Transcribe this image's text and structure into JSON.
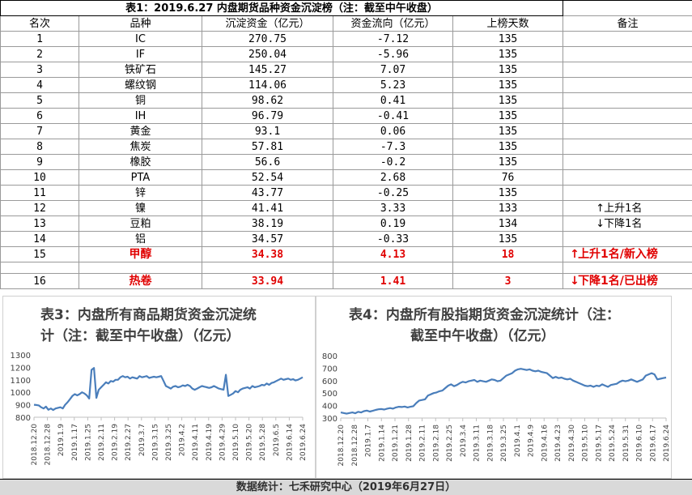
{
  "table": {
    "title": "表1：2019.6.27 内盘期货品种资金沉淀榜（注：截至中午收盘）",
    "headers": [
      "名次",
      "品种",
      "沉淀资金（亿元）",
      "资金流向（亿元）",
      "上榜天数",
      "备注"
    ],
    "rows": [
      {
        "rank": "1",
        "name": "IC",
        "amount": "270.75",
        "flow": "-7.12",
        "days": "135",
        "note": ""
      },
      {
        "rank": "2",
        "name": "IF",
        "amount": "250.04",
        "flow": "-5.96",
        "days": "135",
        "note": ""
      },
      {
        "rank": "3",
        "name": "铁矿石",
        "amount": "145.27",
        "flow": "7.07",
        "days": "135",
        "note": ""
      },
      {
        "rank": "4",
        "name": "螺纹钢",
        "amount": "114.06",
        "flow": "5.23",
        "days": "135",
        "note": ""
      },
      {
        "rank": "5",
        "name": "铜",
        "amount": "98.62",
        "flow": "0.41",
        "days": "135",
        "note": ""
      },
      {
        "rank": "6",
        "name": "IH",
        "amount": "96.79",
        "flow": "-0.41",
        "days": "135",
        "note": ""
      },
      {
        "rank": "7",
        "name": "黄金",
        "amount": "93.1",
        "flow": "0.06",
        "days": "135",
        "note": ""
      },
      {
        "rank": "8",
        "name": "焦炭",
        "amount": "57.81",
        "flow": "-7.3",
        "days": "135",
        "note": ""
      },
      {
        "rank": "9",
        "name": "橡胶",
        "amount": "56.6",
        "flow": "-0.2",
        "days": "135",
        "note": ""
      },
      {
        "rank": "10",
        "name": "PTA",
        "amount": "52.54",
        "flow": "2.68",
        "days": "76",
        "note": ""
      },
      {
        "rank": "11",
        "name": "锌",
        "amount": "43.77",
        "flow": "-0.25",
        "days": "135",
        "note": ""
      },
      {
        "rank": "12",
        "name": "镍",
        "amount": "41.41",
        "flow": "3.33",
        "days": "133",
        "note": "上升1名",
        "arrow": "↑"
      },
      {
        "rank": "13",
        "name": "豆粕",
        "amount": "38.19",
        "flow": "0.19",
        "days": "134",
        "note": "下降1名",
        "arrow": "↓"
      },
      {
        "rank": "14",
        "name": "铝",
        "amount": "34.57",
        "flow": "-0.33",
        "days": "135",
        "note": ""
      }
    ],
    "highlight_rows": [
      {
        "rank": "15",
        "name": "甲醇",
        "amount": "34.38",
        "flow": "4.13",
        "days": "18",
        "note": "上升1名/新入榜",
        "arrow": "↑"
      },
      {
        "rank": "16",
        "name": "热卷",
        "amount": "33.94",
        "flow": "1.41",
        "days": "3",
        "note": "下降1名/已出榜",
        "arrow": "↓"
      }
    ]
  },
  "chart_data": [
    {
      "type": "line",
      "title": "表3：内盘所有商品期货资金沉淀统计（注：截至中午收盘）（亿元）",
      "title_lines": [
        "表3：内盘所有商品期货资金沉淀统",
        "计（注：截至中午收盘）（亿元）"
      ],
      "ylim": [
        800,
        1300
      ],
      "yticks": [
        800,
        900,
        1000,
        1100,
        1200,
        1300
      ],
      "xticks": [
        "2018.12.20",
        "2018.12.28",
        "2019.1.9",
        "2019.1.17",
        "2019.1.25",
        "2019.2.11",
        "2019.2.19",
        "2019.2.27",
        "2019.3.7",
        "2019.3.15",
        "2019.3.25",
        "2019.4.2",
        "2019.4.11",
        "2019.4.19",
        "2019.4.29",
        "2019.5.10",
        "2019.5.20",
        "2019.5.28",
        "2019.6.5",
        "2019.6.14",
        "2019.6.24"
      ],
      "color": "#4a7ebb",
      "values": [
        900,
        898,
        895,
        880,
        870,
        885,
        860,
        870,
        858,
        870,
        875,
        880,
        870,
        900,
        920,
        945,
        970,
        985,
        975,
        985,
        1000,
        990,
        975,
        950,
        1180,
        1195,
        955,
        1020,
        1040,
        1060,
        1080,
        1070,
        1090,
        1085,
        1100,
        1100,
        1120,
        1130,
        1120,
        1125,
        1110,
        1120,
        1115,
        1110,
        1130,
        1120,
        1125,
        1130,
        1115,
        1120,
        1125,
        1120,
        1125,
        1130,
        1090,
        1050,
        1040,
        1030,
        1045,
        1050,
        1040,
        1045,
        1055,
        1050,
        1060,
        1050,
        1030,
        1020,
        1030,
        1040,
        1050,
        1045,
        1040,
        1035,
        1040,
        1050,
        1040,
        1030,
        1025,
        1020,
        1140,
        970,
        980,
        990,
        1010,
        1000,
        1020,
        1030,
        1035,
        1040,
        1030,
        1050,
        1040,
        1045,
        1050,
        1060,
        1055,
        1070,
        1060,
        1075,
        1080,
        1090,
        1100,
        1110,
        1100,
        1105,
        1110,
        1100,
        1105,
        1095,
        1100,
        1110,
        1120
      ]
    },
    {
      "type": "line",
      "title": "表4：内盘所有股指期货资金沉淀统计（注：截至中午收盘）（亿元）",
      "title_lines": [
        "表4：内盘所有股指期货资金沉淀统计（注：",
        "截至中午收盘）（亿元）"
      ],
      "ylim": [
        300,
        800
      ],
      "yticks": [
        300,
        400,
        500,
        600,
        700,
        800
      ],
      "xticks": [
        "2018.12.20",
        "2018.12.28",
        "2019.1.7",
        "2019.1.14",
        "2019.1.21",
        "2019.1.28",
        "2019.2.11",
        "2019.2.18",
        "2019.2.25",
        "2019.3.4",
        "2019.3.11",
        "2019.3.18",
        "2019.3.25",
        "2019.4.1",
        "2019.4.9",
        "2019.4.16",
        "2019.4.23",
        "2019.4.30",
        "2019.5.10",
        "2019.5.17",
        "2019.5.24",
        "2019.5.31",
        "2019.6.10",
        "2019.6.17",
        "2019.6.24"
      ],
      "color": "#4a7ebb",
      "values": [
        345,
        340,
        335,
        340,
        345,
        338,
        350,
        345,
        355,
        360,
        352,
        358,
        365,
        370,
        372,
        368,
        375,
        380,
        375,
        385,
        390,
        388,
        392,
        385,
        390,
        395,
        420,
        440,
        445,
        450,
        480,
        490,
        500,
        505,
        515,
        520,
        540,
        560,
        570,
        555,
        565,
        580,
        590,
        585,
        595,
        600,
        605,
        590,
        600,
        595,
        590,
        600,
        610,
        605,
        595,
        600,
        620,
        640,
        650,
        660,
        680,
        690,
        695,
        690,
        685,
        690,
        680,
        675,
        680,
        670,
        665,
        660,
        640,
        620,
        630,
        620,
        625,
        615,
        610,
        615,
        600,
        590,
        580,
        570,
        560,
        555,
        560,
        550,
        560,
        555,
        570,
        560,
        550,
        565,
        570,
        575,
        590,
        600,
        595,
        600,
        610,
        600,
        590,
        600,
        610,
        640,
        650,
        660,
        650,
        610,
        615,
        620,
        625
      ]
    }
  ],
  "footer": {
    "text": "数据统计：七禾研究中心（2019年6月27日）"
  }
}
